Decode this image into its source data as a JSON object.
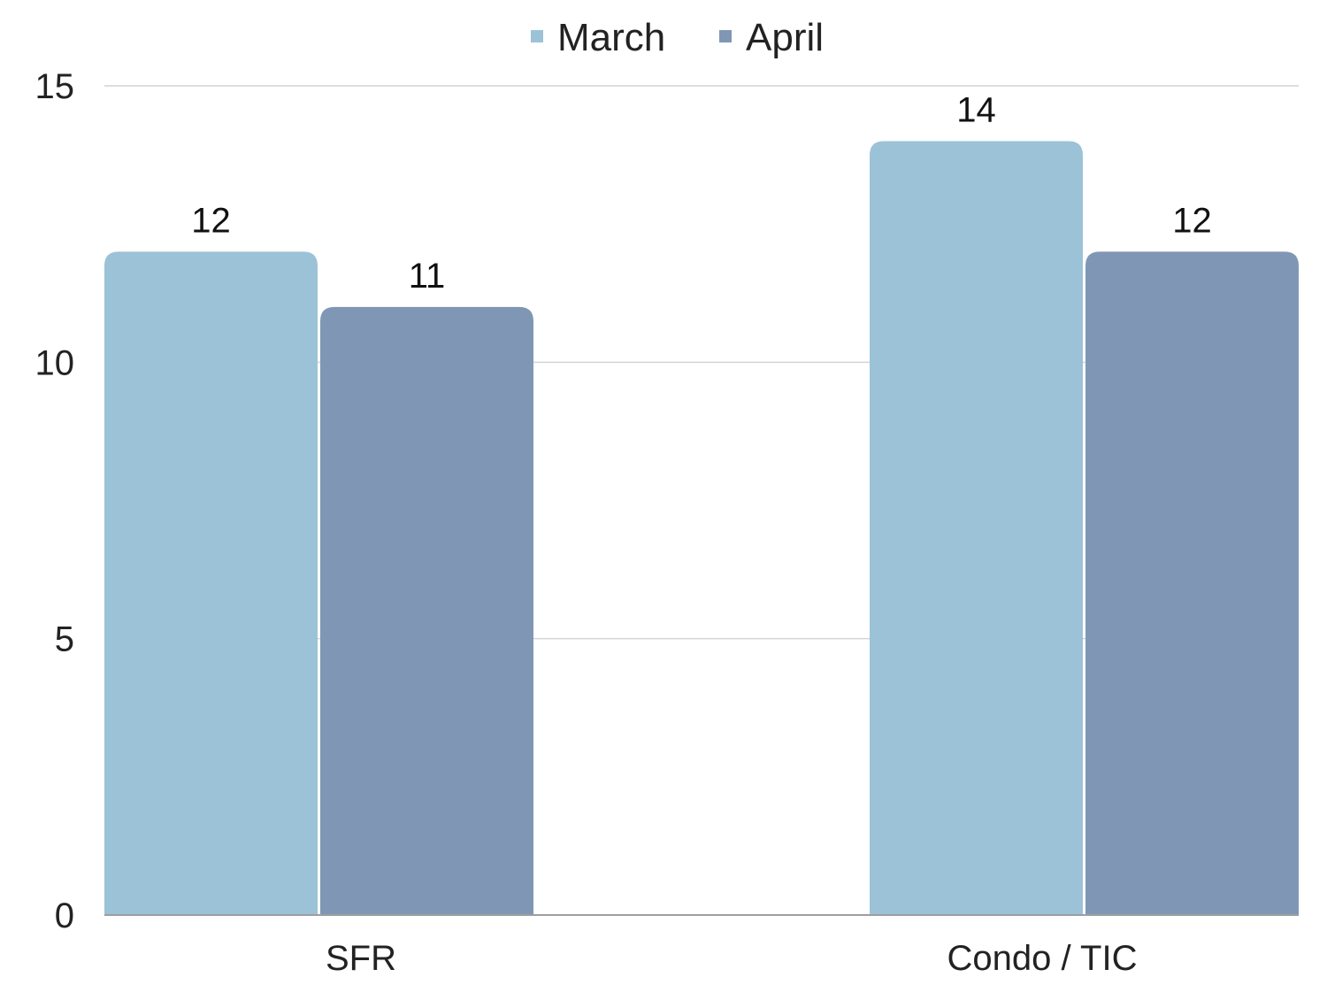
{
  "chart_data": {
    "type": "bar",
    "title": "",
    "xlabel": "",
    "ylabel": "",
    "categories": [
      "SFR",
      "Condo / TIC"
    ],
    "series": [
      {
        "name": "March",
        "values": [
          12,
          14
        ],
        "color": "#9CC2D8"
      },
      {
        "name": "April",
        "values": [
          11,
          12
        ],
        "color": "#7F97B4"
      }
    ],
    "ylim": [
      0,
      15
    ],
    "yticks": [
      0,
      5,
      10,
      15
    ],
    "grid": true,
    "legend_position": "top-center",
    "data_labels": true
  }
}
